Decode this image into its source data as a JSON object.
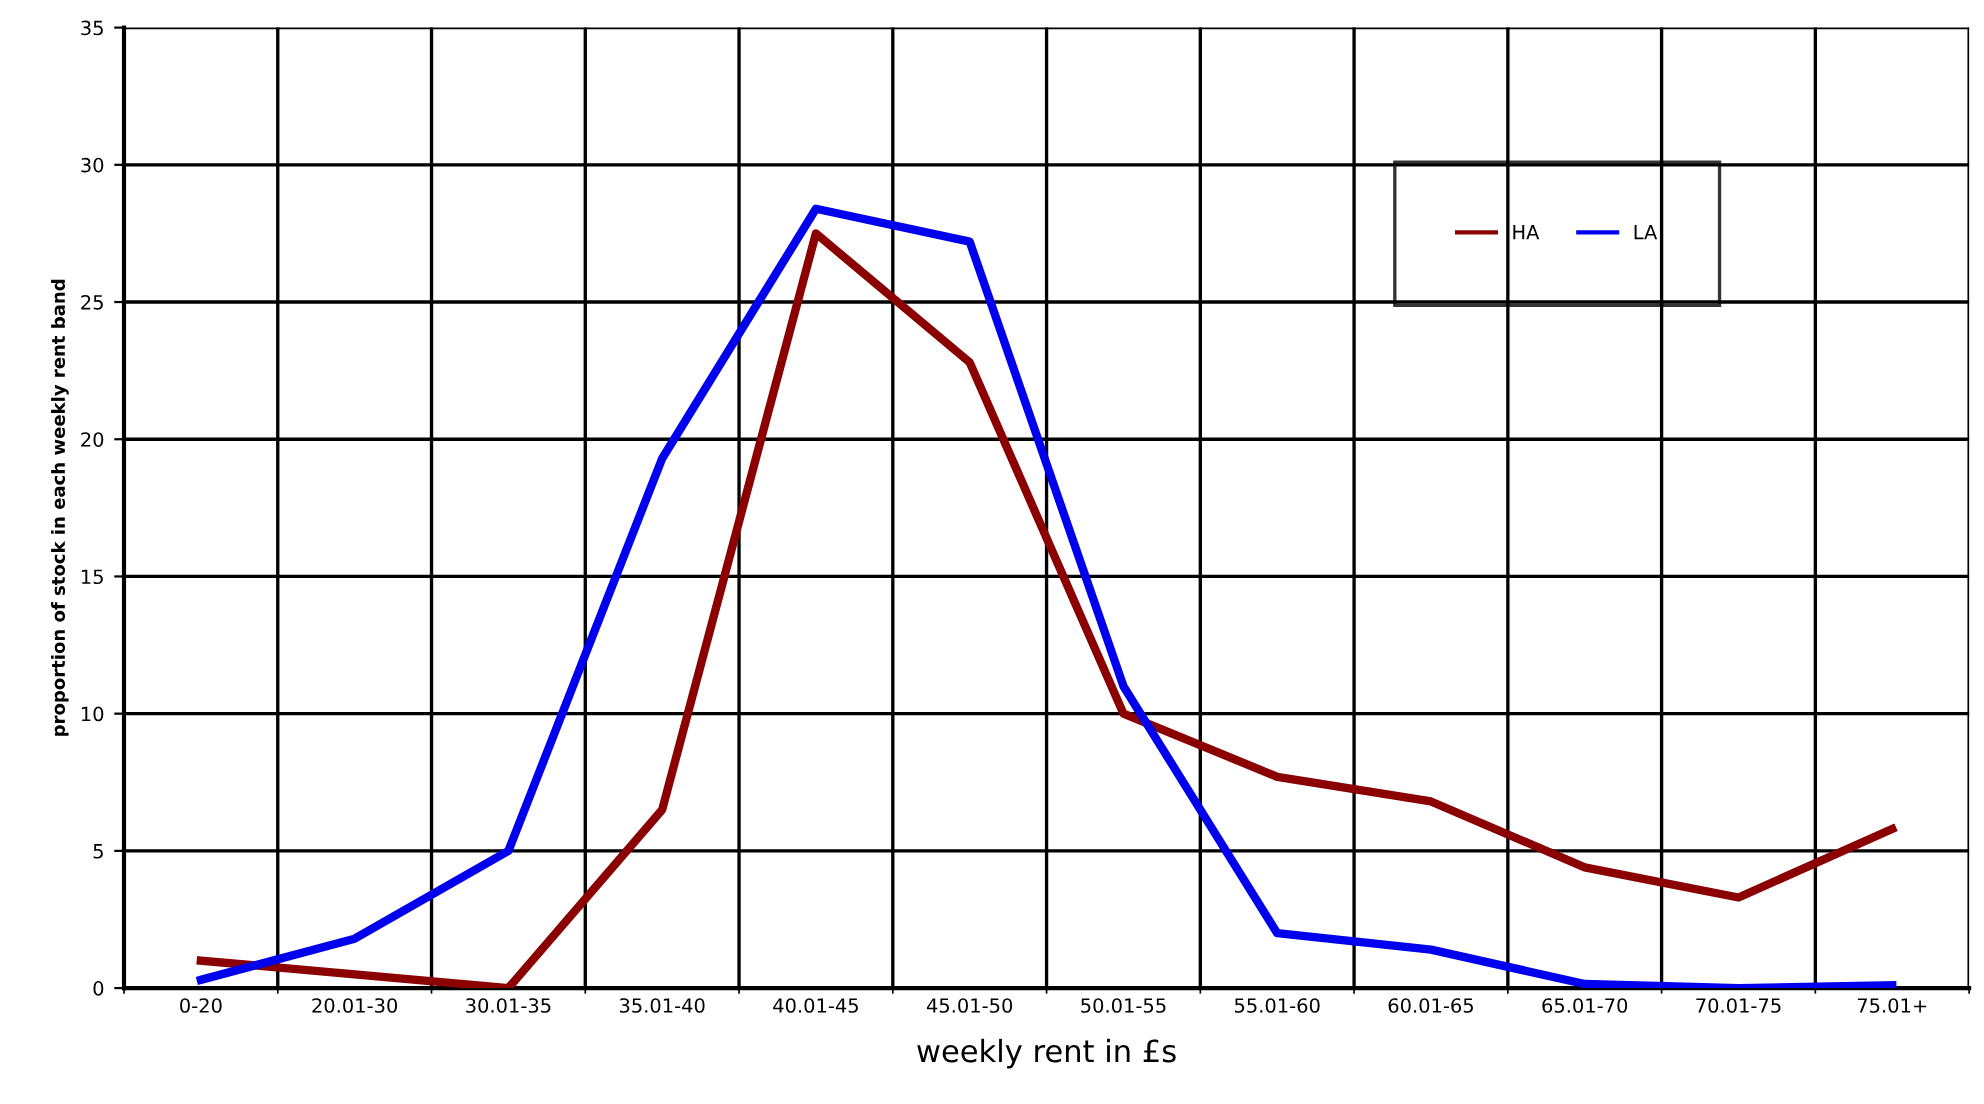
{
  "chart_data": {
    "type": "line",
    "xlabel": "weekly rent in £s",
    "ylabel": "proportion of stock in each weekly rent band",
    "categories": [
      "0-20",
      "20.01-30",
      "30.01-35",
      "35.01-40",
      "40.01-45",
      "45.01-50",
      "50.01-55",
      "55.01-60",
      "60.01-65",
      "65.01-70",
      "70.01-75",
      "75.01+"
    ],
    "series": [
      {
        "name": "HA",
        "color": "#8b0000",
        "values": [
          1.0,
          0.5,
          0,
          6.5,
          27.5,
          22.8,
          10,
          7.7,
          6.8,
          4.4,
          3.3,
          5.8
        ]
      },
      {
        "name": "LA",
        "color": "#0000ee",
        "values": [
          0.3,
          1.8,
          5,
          19.3,
          28.4,
          27.2,
          11,
          2.0,
          1.4,
          0.15,
          0,
          0.1
        ]
      }
    ],
    "ylim": [
      0,
      35
    ],
    "yticks": [
      0,
      5,
      10,
      15,
      20,
      25,
      30,
      35
    ],
    "grid": true,
    "legend": "top right",
    "marker": "none",
    "line_style": "solid"
  }
}
